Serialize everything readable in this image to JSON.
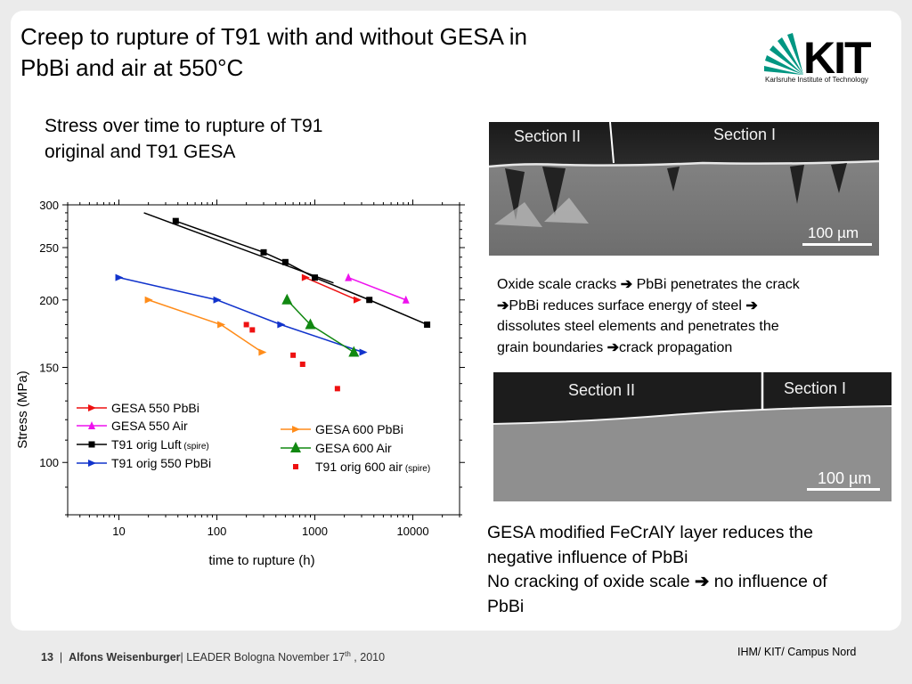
{
  "slide": {
    "title_line1": "Creep to rupture of T91 with and without GESA in",
    "title_line2": "PbBi and air at 550°C",
    "subtitle_line1": "Stress over time to rupture of T91",
    "subtitle_line2": "original and T91 GESA",
    "logo_text": "KIT",
    "logo_sub": "Karlsruhe Institute of Technology"
  },
  "images": {
    "sem1_section_left": "Section II",
    "sem1_section_right": "Section I",
    "sem1_scale": "100 µm",
    "sem2_section_left": "Section II",
    "sem2_section_right": "Section I",
    "sem2_scale": "100 µm"
  },
  "text_block1": {
    "p1a": "Oxide scale cracks",
    "p1b": " PbBi penetrates the crack",
    "p2a": "PbBi reduces surface energy of steel",
    "p3": "dissolutes steel elements and penetrates the",
    "p4a": "grain boundaries ",
    "p4b": "crack propagation"
  },
  "text_block2": {
    "line1": "GESA modified FeCrAlY layer reduces the",
    "line2": "negative influence of PbBi",
    "line3a": "No cracking of oxide scale",
    "line3b": " no influence of",
    "line4": "PbBi"
  },
  "footer": {
    "page": "13",
    "sep": "|",
    "author": "Alfons Weisenburger",
    "event": "| LEADER Bologna November 17",
    "sup": "th",
    "year": " , 2010",
    "right": "IHM/ KIT/ Campus Nord"
  },
  "chart_data": {
    "type": "line",
    "xlabel": "time to rupture (h)",
    "ylabel": "Stress (MPa)",
    "x_scale": "log",
    "y_scale": "log",
    "xlim": [
      3,
      30000
    ],
    "ylim": [
      80,
      300
    ],
    "x_ticks": [
      10,
      100,
      1000,
      10000
    ],
    "x_tick_labels": [
      "10",
      "100",
      "1000",
      "10000"
    ],
    "y_ticks": [
      100,
      150,
      200,
      250,
      300
    ],
    "y_tick_labels": [
      "100",
      "150",
      "200",
      "250",
      "300"
    ],
    "legend_placement": "lower-left and lower-center",
    "series": [
      {
        "name": "GESA 550 PbBi",
        "color": "#ee1111",
        "marker": "triangle-right",
        "line": true,
        "points": [
          [
            800,
            220
          ],
          [
            2700,
            200
          ]
        ]
      },
      {
        "name": "GESA 550 Air",
        "color": "#ee11ee",
        "marker": "triangle-up",
        "line": true,
        "points": [
          [
            2200,
            220
          ],
          [
            8500,
            200
          ]
        ]
      },
      {
        "name": "T91 orig Luft",
        "name_suffix": " (spire)",
        "color": "#000000",
        "marker": "square",
        "line": true,
        "fit": [
          [
            18,
            290
          ],
          [
            1550,
            215
          ]
        ],
        "points": [
          [
            38,
            280
          ],
          [
            300,
            245
          ],
          [
            500,
            235
          ],
          [
            1000,
            220
          ],
          [
            3600,
            200
          ],
          [
            14000,
            180
          ]
        ]
      },
      {
        "name": "T91 orig 550 PbBi",
        "color": "#1133cc",
        "marker": "triangle-right",
        "line": true,
        "points": [
          [
            10,
            220
          ],
          [
            100,
            200
          ],
          [
            450,
            180
          ],
          [
            3100,
            160
          ]
        ]
      },
      {
        "name": "GESA 600 PbBi",
        "color": "#ff8c1a",
        "marker": "triangle-right",
        "line": true,
        "points": [
          [
            20,
            200
          ],
          [
            110,
            180
          ],
          [
            290,
            160
          ]
        ]
      },
      {
        "name": "GESA 600 Air",
        "color": "#118811",
        "marker": "triangle-up-large",
        "line": true,
        "points": [
          [
            520,
            200
          ],
          [
            900,
            180
          ],
          [
            2500,
            160
          ]
        ]
      },
      {
        "name": "T91 orig 600 air",
        "name_suffix": " (spire)",
        "color": "#ee1111",
        "marker": "square-small",
        "line": false,
        "points": [
          [
            200,
            180
          ],
          [
            230,
            176
          ],
          [
            600,
            158
          ],
          [
            750,
            152
          ],
          [
            1700,
            137
          ]
        ]
      }
    ]
  }
}
